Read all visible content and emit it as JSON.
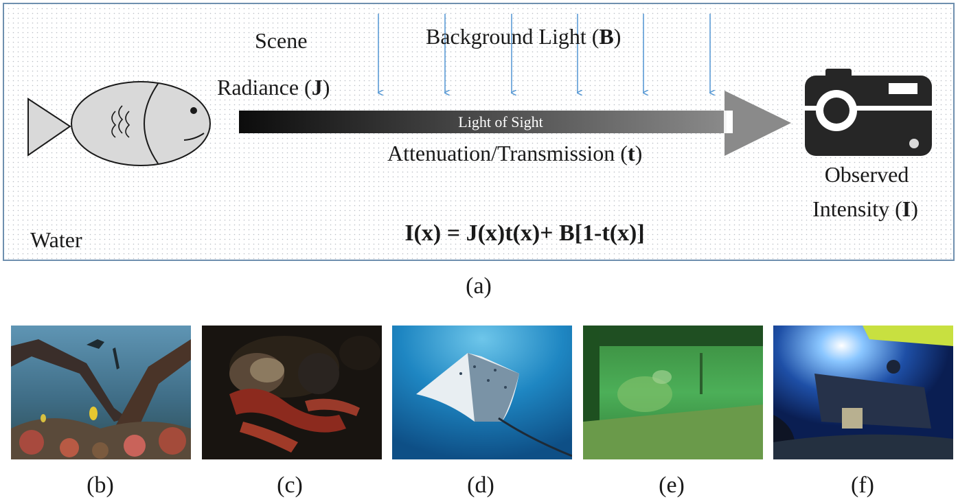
{
  "diagram": {
    "scene_label_line1": "Scene",
    "scene_label_line2_prefix": "Radiance (",
    "scene_label_line2_bold": "J",
    "scene_label_line2_suffix": ")",
    "background_prefix": "Background Light (",
    "background_bold": "B",
    "background_suffix": ")",
    "los_label": "Light of Sight",
    "attenuation_prefix": "Attenuation/Transmission (",
    "attenuation_bold": "t",
    "attenuation_suffix": ")",
    "observed_line1": "Observed",
    "observed_line2_prefix": "Intensity (",
    "observed_line2_bold": "I",
    "observed_line2_suffix": ")",
    "water_label": "Water",
    "equation": "I(x) = J(x)t(x)+ B[1-t(x)]",
    "colors": {
      "border": "#6e8fae",
      "arrow_blue": "#5b9bd5",
      "fish_fill": "#d9d9d9",
      "camera": "#262626",
      "los_arrow_end": "#808080"
    }
  },
  "captions": {
    "a": "(a)",
    "b": "(b)",
    "c": "(c)",
    "d": "(d)",
    "e": "(e)",
    "f": "(f)"
  },
  "photos": [
    {
      "id": "b",
      "subject": "shipwreck-divers"
    },
    {
      "id": "c",
      "subject": "hermit-crab"
    },
    {
      "id": "d",
      "subject": "eagle-ray"
    },
    {
      "id": "e",
      "subject": "green-water-diver"
    },
    {
      "id": "f",
      "subject": "submersible-lights"
    }
  ]
}
